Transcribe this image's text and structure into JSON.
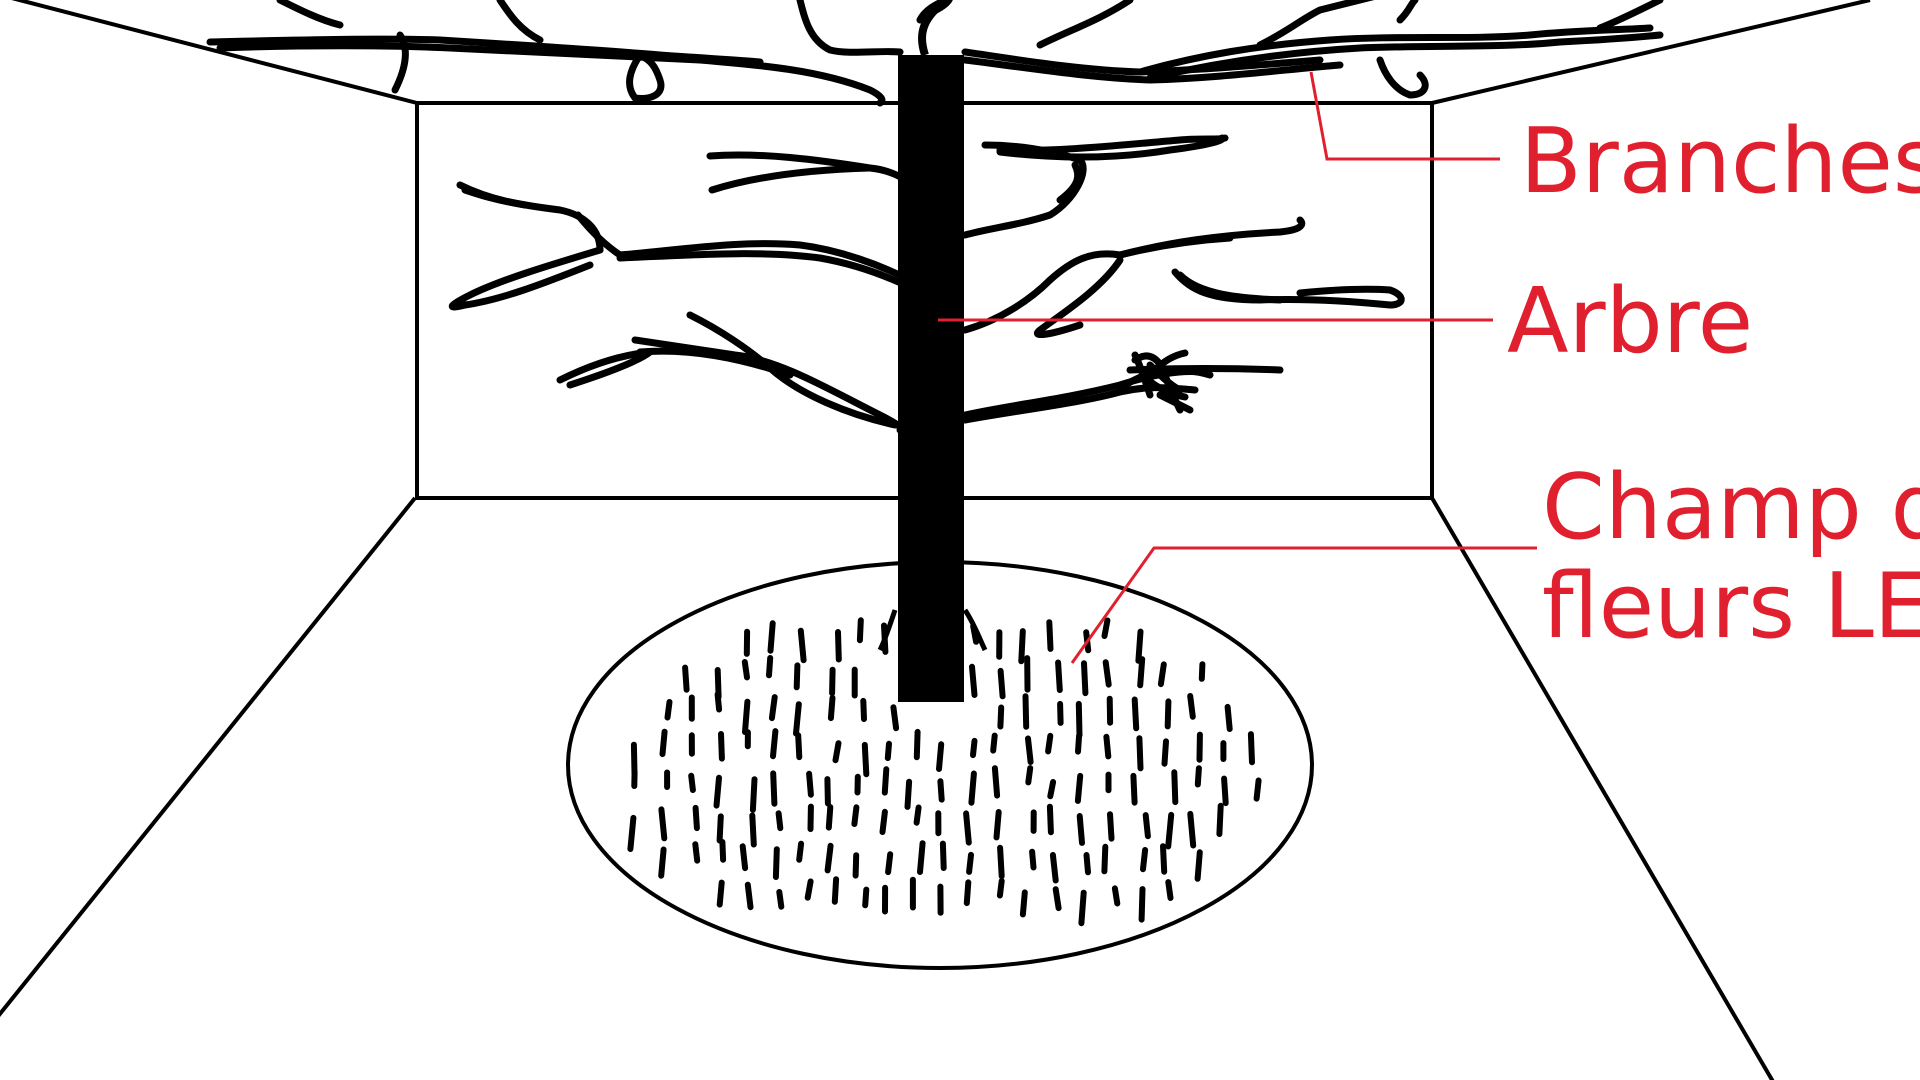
{
  "diagram": {
    "labels": {
      "branches": "Branches",
      "tree": "Arbre",
      "flower_field_line1": "Champ de",
      "flower_field_line2": "fleurs LED"
    },
    "colors": {
      "background": "#ffffff",
      "drawing": "#000000",
      "annotation": "#e0202e"
    }
  }
}
